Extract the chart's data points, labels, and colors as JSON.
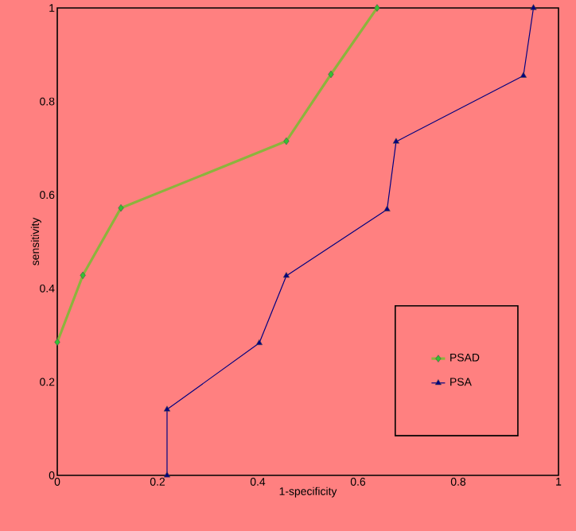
{
  "chart_data": {
    "type": "line",
    "xlabel": "1-specificity",
    "ylabel": "sensitivity",
    "xlim": [
      0,
      1
    ],
    "ylim": [
      0,
      1
    ],
    "xticks": [
      0,
      0.2,
      0.4,
      0.6,
      0.8,
      1
    ],
    "yticks": [
      0,
      0.2,
      0.4,
      0.6,
      0.8,
      1
    ],
    "grid": false,
    "legend": "bottom right",
    "line_style": "solid",
    "series": [
      {
        "name": "PSAD",
        "color": "#8cb43c",
        "marker": "diamond",
        "x": [
          0,
          0.051,
          0.127,
          0.457,
          0.546,
          0.638
        ],
        "values": [
          0.285,
          0.428,
          0.572,
          0.715,
          0.858,
          1
        ]
      },
      {
        "name": "PSA",
        "color": "#000080",
        "marker": "triangle",
        "x": [
          0.219,
          0.219,
          0.403,
          0.457,
          0.658,
          0.676,
          0.93,
          0.95
        ],
        "values": [
          0,
          0.141,
          0.283,
          0.427,
          0.569,
          0.714,
          0.855,
          1
        ]
      }
    ]
  }
}
